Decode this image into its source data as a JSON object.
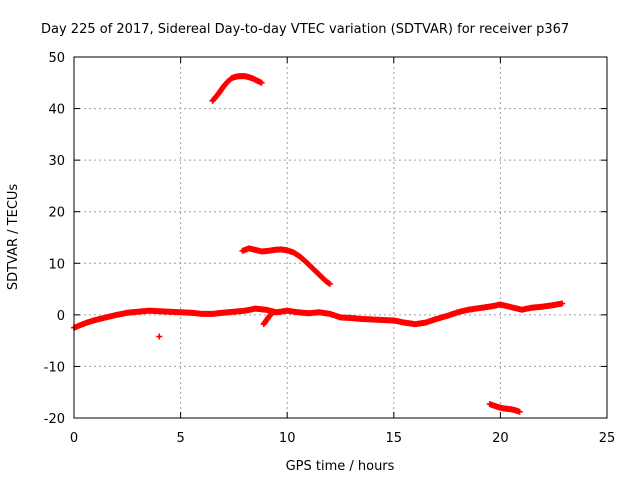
{
  "chart_data": {
    "type": "scatter",
    "title": "Day 225 of 2017, Sidereal Day-to-day VTEC variation (SDTVAR) for receiver p367",
    "xlabel": "GPS time / hours",
    "ylabel": "SDTVAR / TECUs",
    "xlim": [
      0,
      25
    ],
    "ylim": [
      -20,
      50
    ],
    "xticks": [
      0,
      5,
      10,
      15,
      20,
      25
    ],
    "yticks": [
      -20,
      -10,
      0,
      10,
      20,
      30,
      40,
      50
    ],
    "xtick_labels": [
      "0",
      "5",
      "10",
      "15",
      "20",
      "25"
    ],
    "ytick_labels": [
      "-20",
      "-10",
      "0",
      "10",
      "20",
      "30",
      "40",
      "50"
    ],
    "grid": true,
    "marker": "+",
    "color": "#ff0000",
    "series": [
      {
        "name": "baseline",
        "x": [
          0.0,
          0.3,
          0.6,
          1.0,
          1.5,
          2.0,
          2.5,
          3.0,
          3.5,
          4.0,
          4.5,
          5.0,
          5.5,
          6.0,
          6.5,
          7.0,
          7.5,
          8.0,
          8.5,
          9.0,
          9.5,
          10.0,
          10.5,
          11.0,
          11.5,
          12.0,
          12.5,
          13.0,
          13.5,
          14.0,
          14.5,
          15.0,
          15.5,
          16.0,
          16.5,
          17.0,
          17.5,
          18.0,
          18.5,
          19.0,
          19.5,
          20.0,
          20.5,
          21.0,
          21.5,
          22.0,
          22.5,
          22.9
        ],
        "y": [
          -2.5,
          -2.0,
          -1.5,
          -1.0,
          -0.5,
          0.0,
          0.4,
          0.6,
          0.8,
          0.7,
          0.6,
          0.5,
          0.4,
          0.2,
          0.2,
          0.4,
          0.6,
          0.8,
          1.2,
          1.0,
          0.5,
          0.8,
          0.5,
          0.3,
          0.5,
          0.2,
          -0.5,
          -0.6,
          -0.8,
          -0.9,
          -1.0,
          -1.1,
          -1.5,
          -1.8,
          -1.5,
          -0.8,
          -0.2,
          0.5,
          1.0,
          1.3,
          1.6,
          2.0,
          1.5,
          1.0,
          1.4,
          1.6,
          1.9,
          2.2
        ]
      },
      {
        "name": "arc-top",
        "x": [
          6.5,
          6.8,
          7.0,
          7.2,
          7.4,
          7.6,
          7.8,
          8.0,
          8.2,
          8.4,
          8.6,
          8.8
        ],
        "y": [
          41.5,
          43.0,
          44.2,
          45.2,
          45.9,
          46.2,
          46.3,
          46.3,
          46.1,
          45.8,
          45.4,
          45.0
        ]
      },
      {
        "name": "arc-middle",
        "x": [
          7.9,
          8.2,
          8.5,
          8.8,
          9.1,
          9.4,
          9.7,
          10.0,
          10.3,
          10.6,
          10.9,
          11.2,
          11.5,
          11.8,
          12.0
        ],
        "y": [
          12.4,
          12.9,
          12.6,
          12.3,
          12.4,
          12.6,
          12.7,
          12.5,
          12.1,
          11.3,
          10.2,
          9.0,
          7.8,
          6.6,
          6.0
        ]
      },
      {
        "name": "segment-low",
        "x": [
          19.5,
          19.7,
          19.9,
          20.1,
          20.3,
          20.5,
          20.7,
          20.9
        ],
        "y": [
          -17.3,
          -17.6,
          -17.9,
          -18.1,
          -18.2,
          -18.3,
          -18.5,
          -18.8
        ]
      },
      {
        "name": "dip-near-9h",
        "x": [
          8.9,
          9.0,
          9.1,
          9.2,
          9.3
        ],
        "y": [
          -1.8,
          -1.2,
          -0.6,
          -0.1,
          0.4
        ]
      },
      {
        "name": "outlier",
        "x": [
          4.0
        ],
        "y": [
          -4.2
        ]
      }
    ]
  }
}
